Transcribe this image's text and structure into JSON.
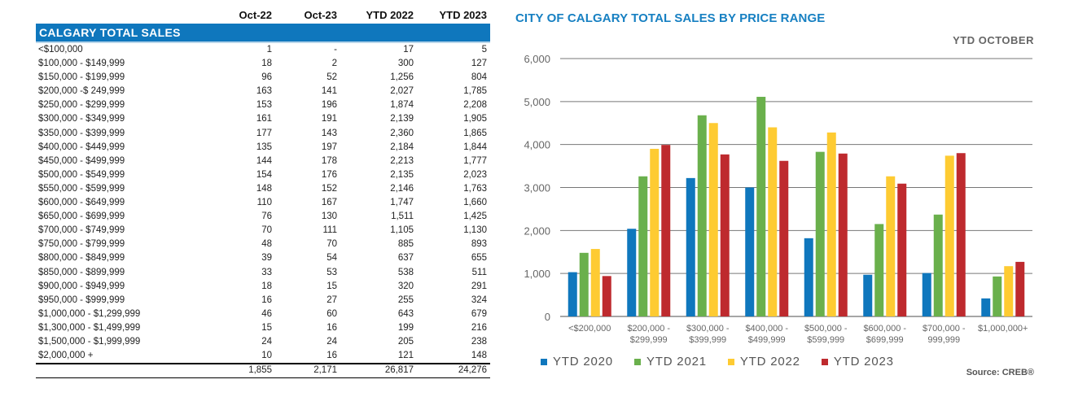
{
  "table": {
    "columns": [
      "Oct-22",
      "Oct-23",
      "YTD 2022",
      "YTD 2023"
    ],
    "section_title": "CALGARY TOTAL SALES",
    "rows": [
      {
        "label": "<$100,000",
        "values": [
          "1",
          "-",
          "17",
          "5"
        ]
      },
      {
        "label": "$100,000 - $149,999",
        "values": [
          "18",
          "2",
          "300",
          "127"
        ]
      },
      {
        "label": "$150,000 - $199,999",
        "values": [
          "96",
          "52",
          "1,256",
          "804"
        ]
      },
      {
        "label": "$200,000 -$ 249,999",
        "values": [
          "163",
          "141",
          "2,027",
          "1,785"
        ]
      },
      {
        "label": "$250,000 - $299,999",
        "values": [
          "153",
          "196",
          "1,874",
          "2,208"
        ]
      },
      {
        "label": "$300,000 - $349,999",
        "values": [
          "161",
          "191",
          "2,139",
          "1,905"
        ]
      },
      {
        "label": "$350,000 - $399,999",
        "values": [
          "177",
          "143",
          "2,360",
          "1,865"
        ]
      },
      {
        "label": "$400,000 - $449,999",
        "values": [
          "135",
          "197",
          "2,184",
          "1,844"
        ]
      },
      {
        "label": "$450,000 - $499,999",
        "values": [
          "144",
          "178",
          "2,213",
          "1,777"
        ]
      },
      {
        "label": "$500,000 - $549,999",
        "values": [
          "154",
          "176",
          "2,135",
          "2,023"
        ]
      },
      {
        "label": "$550,000 - $599,999",
        "values": [
          "148",
          "152",
          "2,146",
          "1,763"
        ]
      },
      {
        "label": "$600,000 - $649,999",
        "values": [
          "110",
          "167",
          "1,747",
          "1,660"
        ]
      },
      {
        "label": "$650,000 - $699,999",
        "values": [
          "76",
          "130",
          "1,511",
          "1,425"
        ]
      },
      {
        "label": "$700,000 - $749,999",
        "values": [
          "70",
          "111",
          "1,105",
          "1,130"
        ]
      },
      {
        "label": "$750,000 - $799,999",
        "values": [
          "48",
          "70",
          "885",
          "893"
        ]
      },
      {
        "label": "$800,000 - $849,999",
        "values": [
          "39",
          "54",
          "637",
          "655"
        ]
      },
      {
        "label": "$850,000 - $899,999",
        "values": [
          "33",
          "53",
          "538",
          "511"
        ]
      },
      {
        "label": "$900,000 - $949,999",
        "values": [
          "18",
          "15",
          "320",
          "291"
        ]
      },
      {
        "label": "$950,000 - $999,999",
        "values": [
          "16",
          "27",
          "255",
          "324"
        ]
      },
      {
        "label": "$1,000,000 - $1,299,999",
        "values": [
          "46",
          "60",
          "643",
          "679"
        ]
      },
      {
        "label": "$1,300,000 - $1,499,999",
        "values": [
          "15",
          "16",
          "199",
          "216"
        ]
      },
      {
        "label": "$1,500,000 - $1,999,999",
        "values": [
          "24",
          "24",
          "205",
          "238"
        ]
      },
      {
        "label": "$2,000,000 +",
        "values": [
          "10",
          "16",
          "121",
          "148"
        ]
      }
    ],
    "totals": [
      "1,855",
      "2,171",
      "26,817",
      "24,276"
    ]
  },
  "chart_data": {
    "type": "bar",
    "title": "CITY OF CALGARY TOTAL SALES BY PRICE RANGE",
    "subtitle": "YTD  OCTOBER",
    "source": "Source: CREB®",
    "xlabel": "",
    "ylabel": "",
    "ylim": [
      0,
      6000
    ],
    "yticks": [
      0,
      1000,
      2000,
      3000,
      4000,
      5000,
      6000
    ],
    "ytick_labels": [
      "0",
      "1,000",
      "2,000",
      "3,000",
      "4,000",
      "5,000",
      "6,000"
    ],
    "grid": true,
    "legend_position": "bottom-left",
    "categories": [
      [
        "<$200,000"
      ],
      [
        "$200,000 -",
        "$299,999"
      ],
      [
        "$300,000 -",
        "$399,999"
      ],
      [
        "$400,000 -",
        "$499,999"
      ],
      [
        "$500,000 -",
        "$599,999"
      ],
      [
        "$600,000 -",
        "$699,999"
      ],
      [
        "$700,000 -",
        "999,999"
      ],
      [
        "$1,000,000+"
      ]
    ],
    "series": [
      {
        "name": "YTD  2020",
        "color": "#0f77bd",
        "values": [
          1030,
          2040,
          3220,
          3000,
          1820,
          970,
          1010,
          420
        ]
      },
      {
        "name": "YTD  2021",
        "color": "#6ab04c",
        "values": [
          1480,
          3260,
          4680,
          5110,
          3830,
          2150,
          2370,
          930
        ]
      },
      {
        "name": "YTD  2022",
        "color": "#fecb32",
        "values": [
          1570,
          3900,
          4500,
          4400,
          4280,
          3260,
          3740,
          1170
        ]
      },
      {
        "name": "YTD  2023",
        "color": "#be2a2e",
        "values": [
          940,
          3990,
          3770,
          3620,
          3790,
          3090,
          3800,
          1270
        ]
      }
    ]
  }
}
